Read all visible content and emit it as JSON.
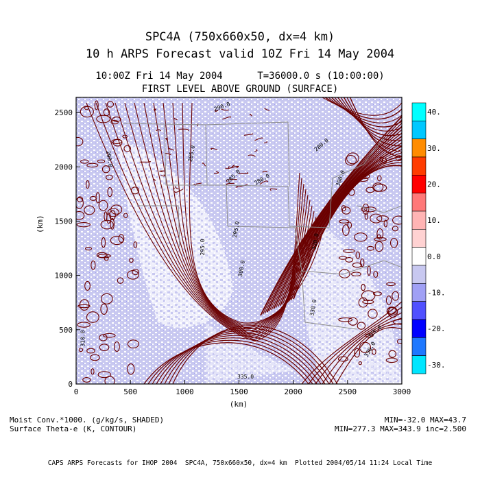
{
  "title": {
    "line1": "SPC4A (750x660x50, dx=4 km)",
    "line2": "10 h ARPS Forecast valid 10Z Fri 14 May 2004",
    "time_line": "10:00Z Fri 14 May 2004      T=36000.0 s (10:00:00)",
    "level_line": "FIRST LEVEL ABOVE GROUND (SURFACE)"
  },
  "axes": {
    "ylabel": "(km)",
    "xlabel": "(km)",
    "x_ticks": [
      "0",
      "500",
      "1000",
      "1500",
      "2000",
      "2500",
      "3000"
    ],
    "y_ticks": [
      "0",
      "500",
      "1000",
      "1500",
      "2000",
      "2500"
    ],
    "x_tick_values": [
      0,
      500,
      1000,
      1500,
      2000,
      2500,
      3000
    ],
    "y_tick_values": [
      0,
      500,
      1000,
      1500,
      2000,
      2500
    ],
    "xlim": [
      0,
      3000
    ],
    "ylim": [
      0,
      2640
    ]
  },
  "colorbar": {
    "labels": [
      "40.",
      "30.",
      "20.",
      "10.",
      "0.0",
      "-10.",
      "-20.",
      "-30."
    ],
    "label_values": [
      40,
      30,
      20,
      10,
      0,
      -10,
      -20,
      -30
    ],
    "range": [
      -32.5,
      42.5
    ],
    "segments": [
      {
        "from": 37.5,
        "to": 42.5,
        "color": "#00ffff"
      },
      {
        "from": 32.5,
        "to": 37.5,
        "color": "#00c8ff"
      },
      {
        "from": 27.5,
        "to": 32.5,
        "color": "#ff8c00"
      },
      {
        "from": 22.5,
        "to": 27.5,
        "color": "#ff3c00"
      },
      {
        "from": 17.5,
        "to": 22.5,
        "color": "#ff0000"
      },
      {
        "from": 12.5,
        "to": 17.5,
        "color": "#ff7878"
      },
      {
        "from": 7.5,
        "to": 12.5,
        "color": "#ffb4b4"
      },
      {
        "from": 2.5,
        "to": 7.5,
        "color": "#ffd2d2"
      },
      {
        "from": -2.5,
        "to": 2.5,
        "color": "#ffffff"
      },
      {
        "from": -7.5,
        "to": -2.5,
        "color": "#c8c8f0"
      },
      {
        "from": -12.5,
        "to": -7.5,
        "color": "#a0a0f5"
      },
      {
        "from": -17.5,
        "to": -12.5,
        "color": "#5050ff"
      },
      {
        "from": -22.5,
        "to": -17.5,
        "color": "#0000ff"
      },
      {
        "from": -27.5,
        "to": -22.5,
        "color": "#1e78ff"
      },
      {
        "from": -32.5,
        "to": -27.5,
        "color": "#00e6ff"
      }
    ]
  },
  "contour_labels": [
    {
      "text": "295.0",
      "x": 1180,
      "y": 1260,
      "rot": -90
    },
    {
      "text": "300.0",
      "x": 1540,
      "y": 1060,
      "rot": -80
    },
    {
      "text": "295.0",
      "x": 1490,
      "y": 1420,
      "rot": -80
    },
    {
      "text": "285.0",
      "x": 1460,
      "y": 1900,
      "rot": -45
    },
    {
      "text": "280.0",
      "x": 1720,
      "y": 1870,
      "rot": -30
    },
    {
      "text": "285.0",
      "x": 1080,
      "y": 2120,
      "rot": -80
    },
    {
      "text": "290.0",
      "x": 290,
      "y": 2070,
      "rot": 80
    },
    {
      "text": "290.0",
      "x": 1350,
      "y": 2540,
      "rot": -20
    },
    {
      "text": "320.0",
      "x": 2220,
      "y": 1310,
      "rot": -80
    },
    {
      "text": "330.0",
      "x": 2200,
      "y": 700,
      "rot": -80
    },
    {
      "text": "325.0",
      "x": 2760,
      "y": 470,
      "rot": -40
    },
    {
      "text": "330.0",
      "x": 2720,
      "y": 310,
      "rot": -60
    },
    {
      "text": "335.0",
      "x": 1560,
      "y": 50,
      "rot": 0
    },
    {
      "text": "280.0",
      "x": 2270,
      "y": 2190,
      "rot": -40
    },
    {
      "text": "300.0",
      "x": 2450,
      "y": 1890,
      "rot": -70
    },
    {
      "text": "310.0",
      "x": 80,
      "y": 420,
      "rot": -90
    }
  ],
  "colors": {
    "contour": "#6b0000",
    "shade_light": "#c8c8f0",
    "shade_mid": "#a0a0f5",
    "boundary": "#8c8c8c"
  },
  "footer": {
    "left1": "Moist Conv.*1000. (g/kg/s, SHADED)",
    "left2": "Surface Theta-e (K, CONTOUR)",
    "right1": "MIN=-32.0 MAX=43.7",
    "right2": "MIN=277.3 MAX=343.9 inc=2.500",
    "bottom": "CAPS ARPS Forecasts for IHOP 2004  SPC4A, 750x660x50, dx=4 km  Plotted 2004/05/14 11:24 Local Time"
  }
}
